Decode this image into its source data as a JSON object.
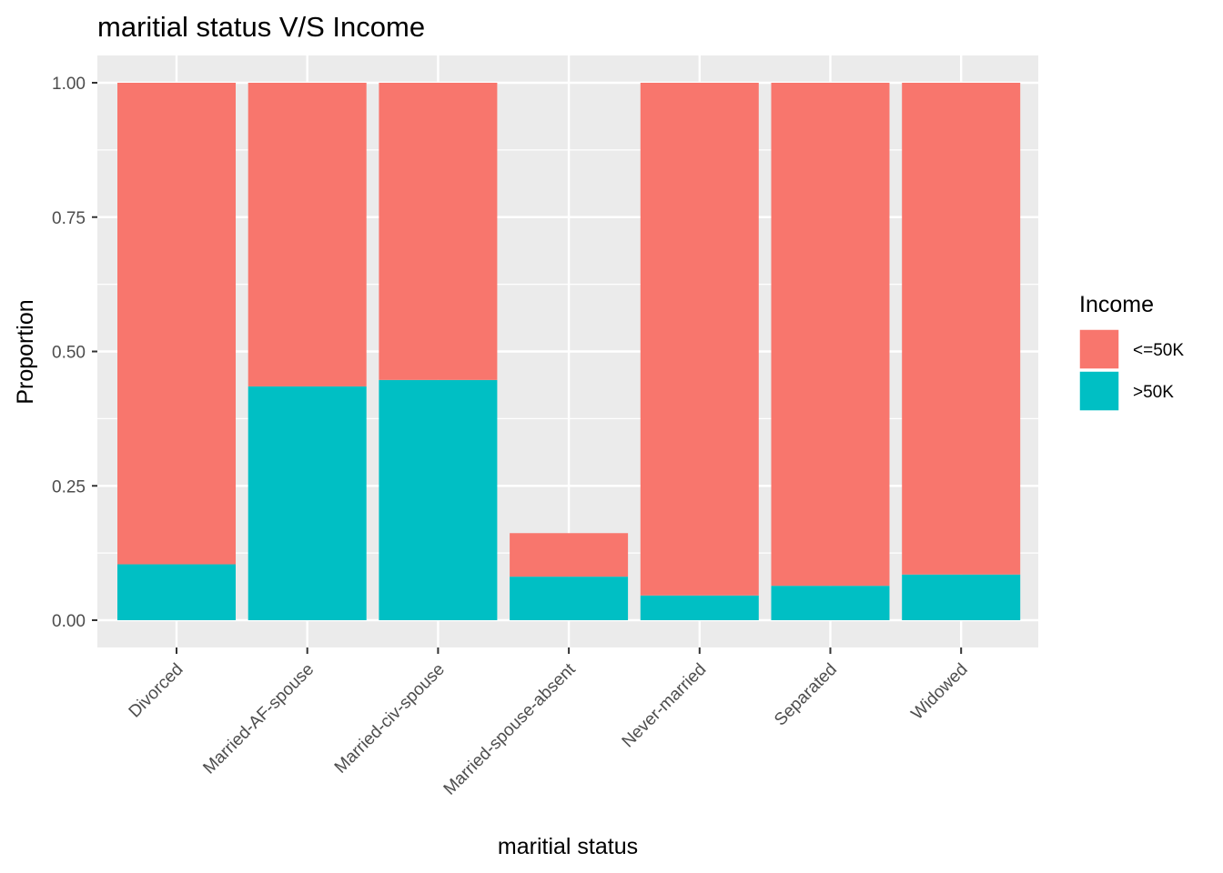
{
  "chart_data": {
    "type": "bar",
    "stacked": true,
    "title": "maritial status V/S Income",
    "xlabel": "maritial status",
    "ylabel": "Proportion",
    "ylim": [
      0,
      1
    ],
    "yticks": [
      "0.00",
      "0.25",
      "0.50",
      "0.75",
      "1.00"
    ],
    "categories": [
      "Divorced",
      "Married-AF-spouse",
      "Married-civ-spouse",
      "Married-spouse-absent",
      "Never-married",
      "Separated",
      "Widowed"
    ],
    "series": [
      {
        "name": "<=50K",
        "color": "#F8766D",
        "values": [
          0.896,
          0.565,
          0.553,
          0.081,
          0.954,
          0.936,
          0.915
        ]
      },
      {
        "name": ">50K",
        "color": "#00BFC4",
        "values": [
          0.104,
          0.435,
          0.447,
          0.081,
          0.046,
          0.064,
          0.085
        ]
      }
    ],
    "legend": {
      "title": "Income",
      "position": "right"
    },
    "grid": true
  }
}
